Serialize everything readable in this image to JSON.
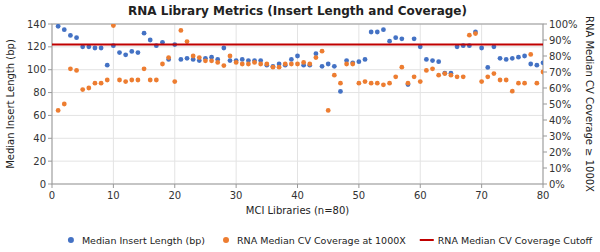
{
  "chart_data": {
    "type": "scatter",
    "title": "RNA Library Metrics (Insert Length and Coverage)",
    "x_label": "MCI Libraries (n=80)",
    "y_label": "Median Insert Length (bp)",
    "y2_label": "RNA Median CV Coverage ≥ 1000X",
    "xlim": [
      0,
      80
    ],
    "ylim": [
      0,
      140
    ],
    "y2lim": [
      0,
      1.0
    ],
    "xticks": [
      0,
      10,
      20,
      30,
      40,
      50,
      60,
      70,
      80
    ],
    "yticks": [
      0,
      20,
      40,
      60,
      80,
      100,
      120,
      140
    ],
    "y2ticks": [
      {
        "value": 0.0,
        "label": "0%"
      },
      {
        "value": 0.1,
        "label": "10%"
      },
      {
        "value": 0.2,
        "label": "20%"
      },
      {
        "value": 0.3,
        "label": "30%"
      },
      {
        "value": 0.4,
        "label": "40%"
      },
      {
        "value": 0.5,
        "label": "50%"
      },
      {
        "value": 0.6,
        "label": "60%"
      },
      {
        "value": 0.7,
        "label": "70%"
      },
      {
        "value": 0.8,
        "label": "80%"
      },
      {
        "value": 0.9,
        "label": "90%"
      },
      {
        "value": 1.0,
        "label": "100%"
      }
    ],
    "grid": true,
    "legend": "bottom-right",
    "series": [
      {
        "name": "Median Insert Length (bp)",
        "type": "scatter",
        "color": "#4472C4",
        "x": [
          1,
          2,
          3,
          4,
          5,
          6,
          7,
          8,
          9,
          10,
          11,
          12,
          13,
          14,
          15,
          16,
          17,
          18,
          19,
          20,
          21,
          22,
          23,
          24,
          25,
          26,
          27,
          28,
          29,
          30,
          31,
          32,
          33,
          34,
          35,
          36,
          37,
          38,
          39,
          40,
          41,
          42,
          43,
          44,
          45,
          46,
          47,
          48,
          49,
          50,
          51,
          52,
          53,
          54,
          55,
          56,
          57,
          58,
          59,
          60,
          61,
          62,
          63,
          64,
          65,
          66,
          67,
          68,
          69,
          70,
          71,
          72,
          73,
          74,
          75,
          76,
          77,
          78,
          79,
          80
        ],
        "values": [
          138,
          135,
          130,
          128,
          120,
          120,
          119,
          119,
          104,
          121,
          115,
          113,
          116,
          115,
          132,
          126,
          121,
          124,
          109,
          122,
          109,
          110,
          109,
          108,
          110,
          111,
          109,
          119,
          108,
          108,
          109,
          108,
          108,
          108,
          104,
          103,
          105,
          104,
          109,
          112,
          104,
          104,
          114,
          103,
          105,
          103,
          81,
          108,
          106,
          107,
          109,
          133,
          133,
          135,
          125,
          128,
          127,
          87,
          127,
          120,
          109,
          108,
          107,
          97,
          97,
          120,
          121,
          121,
          133,
          119,
          102,
          120,
          110,
          109,
          110,
          111,
          112,
          105,
          104,
          106
        ]
      },
      {
        "name": "RNA Median CV Coverage at 1000X",
        "type": "scatter",
        "color": "#ED7D31",
        "axis": "y2",
        "x": [
          1,
          2,
          3,
          4,
          5,
          6,
          7,
          8,
          9,
          10,
          11,
          12,
          13,
          14,
          15,
          16,
          17,
          18,
          19,
          20,
          21,
          22,
          23,
          24,
          25,
          26,
          27,
          28,
          29,
          30,
          31,
          32,
          33,
          34,
          35,
          36,
          37,
          38,
          39,
          40,
          41,
          42,
          43,
          44,
          45,
          46,
          47,
          48,
          49,
          50,
          51,
          52,
          53,
          54,
          55,
          56,
          57,
          58,
          59,
          60,
          61,
          62,
          63,
          64,
          65,
          66,
          67,
          68,
          69,
          70,
          71,
          72,
          73,
          74,
          75,
          76,
          77,
          78,
          79,
          80
        ],
        "values": [
          0.46,
          0.5,
          0.72,
          0.71,
          0.59,
          0.6,
          0.63,
          0.63,
          0.65,
          0.99,
          0.65,
          0.64,
          0.65,
          0.65,
          0.72,
          0.65,
          0.65,
          0.75,
          0.79,
          0.64,
          0.96,
          0.89,
          0.8,
          0.79,
          0.77,
          0.77,
          0.76,
          0.74,
          0.8,
          0.76,
          0.75,
          0.75,
          0.76,
          0.75,
          0.75,
          0.73,
          0.73,
          0.75,
          0.75,
          0.75,
          0.76,
          0.75,
          0.79,
          0.83,
          0.46,
          0.68,
          0.63,
          0.75,
          0.75,
          0.63,
          0.64,
          0.63,
          0.63,
          0.62,
          0.63,
          0.67,
          0.73,
          0.63,
          0.67,
          0.64,
          0.71,
          0.72,
          0.68,
          0.69,
          0.68,
          0.67,
          0.67,
          0.93,
          0.94,
          0.64,
          0.67,
          0.69,
          0.65,
          0.65,
          0.58,
          0.63,
          0.63,
          0.81,
          0.63,
          0.7
        ]
      },
      {
        "name": "RNA Median CV Coverage Cutoff",
        "type": "hline",
        "color": "#C00000",
        "values": [
          122
        ]
      }
    ]
  }
}
